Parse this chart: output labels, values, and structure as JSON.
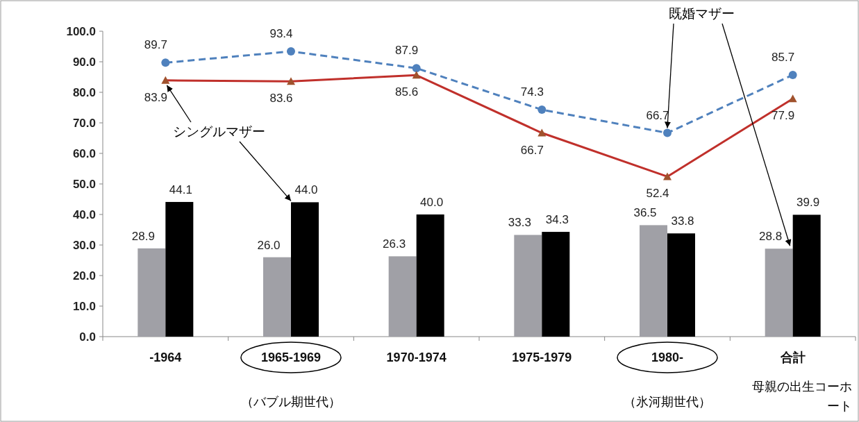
{
  "chart_data": {
    "type": "bar",
    "categories": [
      "-1964",
      "1965-1969",
      "1970-1974",
      "1975-1979",
      "1980-",
      "合計"
    ],
    "series": [
      {
        "color": "#a0a0a6",
        "values": [
          28.9,
          26.0,
          26.3,
          33.3,
          36.5,
          28.8
        ],
        "value_labels": [
          "28.9",
          "26.0",
          "26.3",
          "33.3",
          "36.5",
          "28.8"
        ]
      },
      {
        "color": "#000000",
        "values": [
          44.1,
          44.0,
          40.0,
          34.3,
          33.8,
          39.9
        ],
        "value_labels": [
          "44.1",
          "44.0",
          "40.0",
          "34.3",
          "33.8",
          "39.9"
        ]
      },
      {
        "type": "line",
        "color": "#4f81bd",
        "marker": "circle",
        "line_style": "dashed",
        "values": [
          89.7,
          93.4,
          87.9,
          74.3,
          66.7,
          85.7
        ],
        "value_labels": [
          "89.7",
          "93.4",
          "87.9",
          "74.3",
          "66.7",
          "85.7"
        ]
      },
      {
        "type": "line",
        "color": "#c0302b",
        "marker": "triangle",
        "line_style": "solid",
        "values": [
          83.9,
          83.6,
          85.6,
          66.7,
          52.4,
          77.9
        ],
        "value_labels": [
          "83.9",
          "83.6",
          "85.6",
          "66.7",
          "52.4",
          "77.9"
        ]
      }
    ],
    "ylim": [
      0,
      100
    ],
    "yticks": [
      {
        "value": 0,
        "label": "0.0"
      },
      {
        "value": 10,
        "label": "10.0"
      },
      {
        "value": 20,
        "label": "20.0"
      },
      {
        "value": 30,
        "label": "30.0"
      },
      {
        "value": 40,
        "label": "40.0"
      },
      {
        "value": 50,
        "label": "50.0"
      },
      {
        "value": 60,
        "label": "60.0"
      },
      {
        "value": 70,
        "label": "70.0"
      },
      {
        "value": 80,
        "label": "80.0"
      },
      {
        "value": 90,
        "label": "90.0"
      },
      {
        "value": 100,
        "label": "100.0"
      }
    ],
    "grid": false,
    "xlabel": "母親の出生コーホート",
    "annotations": [
      {
        "text": "シングルマザー",
        "x": "-1964",
        "y": 83.9
      },
      {
        "text": "既婚マザー",
        "x": "1980-",
        "y": 66.7
      },
      "（バブル期世代）",
      "（氷河期世代）"
    ]
  }
}
